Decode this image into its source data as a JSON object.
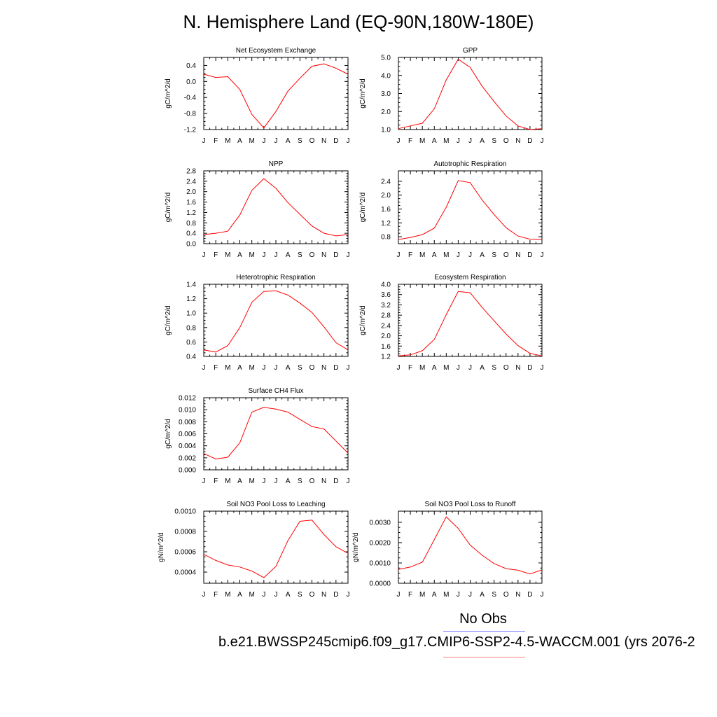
{
  "title": "N. Hemisphere Land (EQ-90N,180W-180E)",
  "legend": {
    "obs_label": "No Obs",
    "case_label": "b.e21.BWSSP245cmip6.f09_g17.CMIP6-SSP2-4.5-WACCM.001 (yrs 2076-2",
    "obs_color": "#8080ff",
    "case_color": "#ff8080"
  },
  "line_color": "#ff0000",
  "chart_data": [
    {
      "type": "line",
      "title": "Net Ecosystem Exchange",
      "ylabel": "gC/m^2/d",
      "x": [
        "J",
        "F",
        "M",
        "A",
        "M",
        "J",
        "J",
        "A",
        "S",
        "O",
        "N",
        "D",
        "J"
      ],
      "values": [
        0.18,
        0.1,
        0.12,
        -0.2,
        -0.82,
        -1.16,
        -0.75,
        -0.24,
        0.08,
        0.38,
        0.44,
        0.33,
        0.18
      ],
      "ylim": [
        -1.2,
        0.6
      ],
      "yticks": [
        -1.2,
        -0.8,
        -0.4,
        0.0,
        0.4
      ],
      "yticklabels": [
        "-1.2",
        "-0.8",
        "-0.4",
        "0.0",
        "0.4"
      ]
    },
    {
      "type": "line",
      "title": "GPP",
      "ylabel": "gC/m^2/d",
      "x": [
        "J",
        "F",
        "M",
        "A",
        "M",
        "J",
        "J",
        "A",
        "S",
        "O",
        "N",
        "D",
        "J"
      ],
      "values": [
        1.05,
        1.2,
        1.35,
        2.15,
        3.75,
        4.9,
        4.45,
        3.4,
        2.55,
        1.75,
        1.2,
        1.0,
        1.05
      ],
      "ylim": [
        1.0,
        5.0
      ],
      "yticks": [
        1.0,
        2.0,
        3.0,
        4.0,
        5.0
      ],
      "yticklabels": [
        "1.0",
        "2.0",
        "3.0",
        "4.0",
        "5.0"
      ]
    },
    {
      "type": "line",
      "title": "NPP",
      "ylabel": "gC/m^2/d",
      "x": [
        "J",
        "F",
        "M",
        "A",
        "M",
        "J",
        "J",
        "A",
        "S",
        "O",
        "N",
        "D",
        "J"
      ],
      "values": [
        0.35,
        0.4,
        0.48,
        1.1,
        2.05,
        2.5,
        2.13,
        1.58,
        1.13,
        0.68,
        0.4,
        0.3,
        0.35
      ],
      "ylim": [
        0.0,
        2.8
      ],
      "yticks": [
        0.0,
        0.4,
        0.8,
        1.2,
        1.6,
        2.0,
        2.4,
        2.8
      ],
      "yticklabels": [
        "0.0",
        "0.4",
        "0.8",
        "1.2",
        "1.6",
        "2.0",
        "2.4",
        "2.8"
      ]
    },
    {
      "type": "line",
      "title": "Autotrophic Respiration",
      "ylabel": "gC/m^2/d",
      "x": [
        "J",
        "F",
        "M",
        "A",
        "M",
        "J",
        "J",
        "A",
        "S",
        "O",
        "N",
        "D",
        "J"
      ],
      "values": [
        0.72,
        0.78,
        0.86,
        1.05,
        1.65,
        2.42,
        2.36,
        1.86,
        1.44,
        1.06,
        0.82,
        0.73,
        0.72
      ],
      "ylim": [
        0.6,
        2.7
      ],
      "yticks": [
        0.8,
        1.2,
        1.6,
        2.0,
        2.4
      ],
      "yticklabels": [
        "0.8",
        "1.2",
        "1.6",
        "2.0",
        "2.4"
      ]
    },
    {
      "type": "line",
      "title": "Heterotrophic Respiration",
      "ylabel": "gC/m^2/d",
      "x": [
        "J",
        "F",
        "M",
        "A",
        "M",
        "J",
        "J",
        "A",
        "S",
        "O",
        "N",
        "D",
        "J"
      ],
      "values": [
        0.49,
        0.46,
        0.55,
        0.8,
        1.15,
        1.3,
        1.31,
        1.25,
        1.14,
        1.01,
        0.81,
        0.59,
        0.49
      ],
      "ylim": [
        0.4,
        1.4
      ],
      "yticks": [
        0.4,
        0.6,
        0.8,
        1.0,
        1.2,
        1.4
      ],
      "yticklabels": [
        "0.4",
        "0.6",
        "0.8",
        "1.0",
        "1.2",
        "1.4"
      ]
    },
    {
      "type": "line",
      "title": "Ecosystem Respiration",
      "ylabel": "gC/m^2/d",
      "x": [
        "J",
        "F",
        "M",
        "A",
        "M",
        "J",
        "J",
        "A",
        "S",
        "O",
        "N",
        "D",
        "J"
      ],
      "values": [
        1.22,
        1.26,
        1.42,
        1.86,
        2.82,
        3.72,
        3.67,
        3.1,
        2.58,
        2.07,
        1.62,
        1.32,
        1.22
      ],
      "ylim": [
        1.2,
        4.0
      ],
      "yticks": [
        1.2,
        1.6,
        2.0,
        2.4,
        2.8,
        3.2,
        3.6,
        4.0
      ],
      "yticklabels": [
        "1.2",
        "1.6",
        "2.0",
        "2.4",
        "2.8",
        "3.2",
        "3.6",
        "4.0"
      ]
    },
    {
      "type": "line",
      "title": "Surface CH4 Flux",
      "ylabel": "gC/m^2/d",
      "x": [
        "J",
        "F",
        "M",
        "A",
        "M",
        "J",
        "J",
        "A",
        "S",
        "O",
        "N",
        "D",
        "J"
      ],
      "values": [
        0.0027,
        0.0018,
        0.0021,
        0.0045,
        0.0096,
        0.0104,
        0.0101,
        0.0096,
        0.0084,
        0.0072,
        0.0068,
        0.0048,
        0.0028
      ],
      "ylim": [
        0.0,
        0.012
      ],
      "yticks": [
        0.0,
        0.002,
        0.004,
        0.006,
        0.008,
        0.01,
        0.012
      ],
      "yticklabels": [
        "0.000",
        "0.002",
        "0.004",
        "0.006",
        "0.008",
        "0.010",
        "0.012"
      ]
    },
    {
      "type": "line",
      "title": "Soil NO3 Pool Loss to Leaching",
      "ylabel": "gN/m^2/d",
      "x": [
        "J",
        "F",
        "M",
        "A",
        "M",
        "J",
        "J",
        "A",
        "S",
        "O",
        "N",
        "D",
        "J"
      ],
      "values": [
        0.000575,
        0.000515,
        0.00047,
        0.00045,
        0.00041,
        0.000345,
        0.000455,
        0.00071,
        0.0009,
        0.000912,
        0.00077,
        0.00065,
        0.000585
      ],
      "ylim": [
        0.00029,
        0.001
      ],
      "yticks": [
        0.0004,
        0.0006,
        0.0008,
        0.001
      ],
      "yticklabels": [
        "0.0004",
        "0.0006",
        "0.0008",
        "0.0010"
      ]
    },
    {
      "type": "line",
      "title": "Soil NO3 Pool Loss to Runoff",
      "ylabel": "gN/m^2/d",
      "x": [
        "J",
        "F",
        "M",
        "A",
        "M",
        "J",
        "J",
        "A",
        "S",
        "O",
        "N",
        "D",
        "J"
      ],
      "values": [
        0.00068,
        0.0008,
        0.00104,
        0.00215,
        0.00327,
        0.0027,
        0.00188,
        0.00138,
        0.00097,
        0.00072,
        0.00064,
        0.00046,
        0.00066
      ],
      "ylim": [
        0.0,
        0.00355
      ],
      "yticks": [
        0.0,
        0.001,
        0.002,
        0.003
      ],
      "yticklabels": [
        "0.0000",
        "0.0010",
        "0.0020",
        "0.0030"
      ]
    }
  ]
}
